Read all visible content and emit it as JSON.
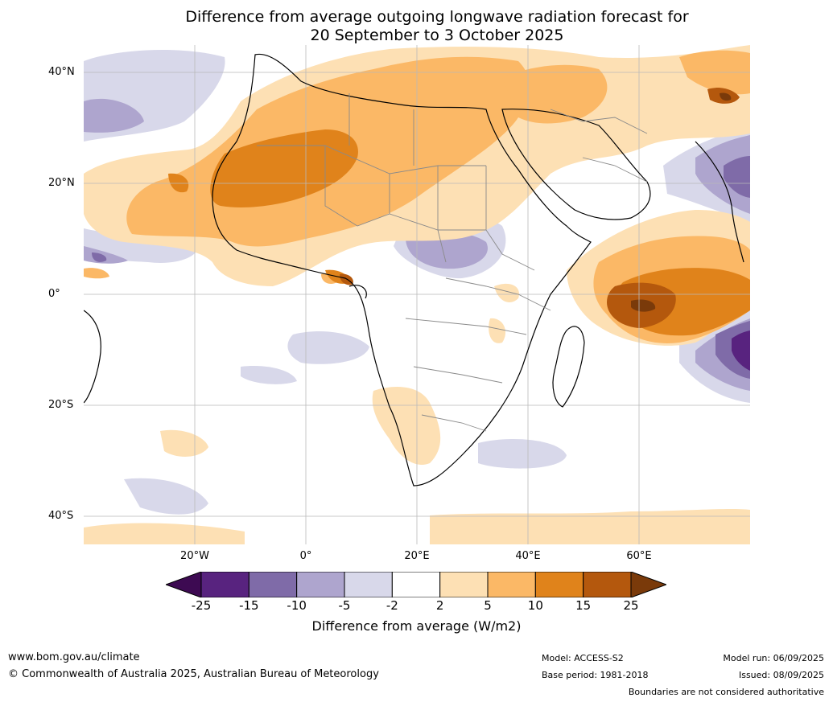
{
  "title_line1": "Difference from average outgoing longwave radiation forecast for",
  "title_line2": "20 September to 3 October 2025",
  "lat_ticks": [
    "40°N",
    "20°N",
    "0°",
    "20°S",
    "40°S"
  ],
  "lon_ticks": [
    "20°W",
    "0°",
    "20°E",
    "40°E",
    "60°E"
  ],
  "colorbar": {
    "ticks": [
      "-25",
      "-15",
      "-10",
      "-5",
      "-2",
      "2",
      "5",
      "10",
      "15",
      "25"
    ],
    "colors": [
      "#3d0a52",
      "#58237f",
      "#7f6ba8",
      "#aea5ce",
      "#d8d8ea",
      "#ffffff",
      "#fde0b4",
      "#fbb866",
      "#e0831b",
      "#b4580d",
      "#7a3a0a"
    ],
    "label": "Difference from average (W/m2)"
  },
  "footer": {
    "website": "www.bom.gov.au/climate",
    "copyright": "© Commonwealth of Australia 2025, Australian Bureau of Meteorology",
    "model": "Model: ACCESS-S2",
    "base_period": "Base period: 1981-2018",
    "model_run": "Model run: 06/09/2025",
    "issued": "Issued: 08/09/2025",
    "disclaimer": "Boundaries are not considered authoritative"
  }
}
